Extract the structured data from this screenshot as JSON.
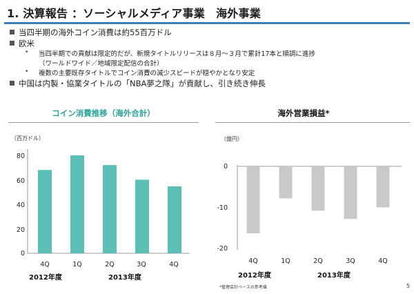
{
  "header": {
    "title": "1. 決算報告 ：ソーシャルメディア事業　海外事業"
  },
  "bullets": [
    "当四半期の海外コイン消費は約55百万ドル",
    "欧米",
    "中国は内製・協業タイトルの「NBA夢之隊」が貢献し、引き続き伸長"
  ],
  "sub_bullets": [
    "当四半期での貢献は限定的だが、新規タイトルリリースは８月～３月で累計17本と順調に進捗",
    "（ワールドワイド／地域限定配信の合計）",
    "複数の主要既存タイトルでコイン消費の減少スピードが穏やかとなり安定"
  ],
  "chart_data": [
    {
      "type": "bar",
      "title": "コイン消費推移（海外合計）",
      "unit_label": "（百万ドル）",
      "categories": [
        "4Q",
        "1Q",
        "2Q",
        "3Q",
        "4Q"
      ],
      "values": [
        68.5,
        80.5,
        72.5,
        60.5,
        55
      ],
      "ylim": [
        0,
        85
      ],
      "yticks": [
        0,
        20,
        40,
        60,
        80
      ],
      "fiscal_years": [
        "2012年度",
        "2013年度"
      ],
      "bar_color": "#5bbfb5",
      "grid": false
    },
    {
      "type": "bar",
      "title": "海外営業損益*",
      "unit_label": "（億円）",
      "categories": [
        "4Q",
        "1Q",
        "2Q",
        "3Q",
        "4Q"
      ],
      "values": [
        -16.3,
        -7.8,
        -10.8,
        -12.8,
        -10
      ],
      "ylim": [
        -20,
        0
      ],
      "yticks": [
        0,
        -10,
        -20
      ],
      "fiscal_years": [
        "2012年度",
        "2013年度"
      ],
      "bar_color": "#c9c9c9",
      "grid": false
    }
  ],
  "footnote": "*管理会計ベースの参考値",
  "page_number": "5"
}
